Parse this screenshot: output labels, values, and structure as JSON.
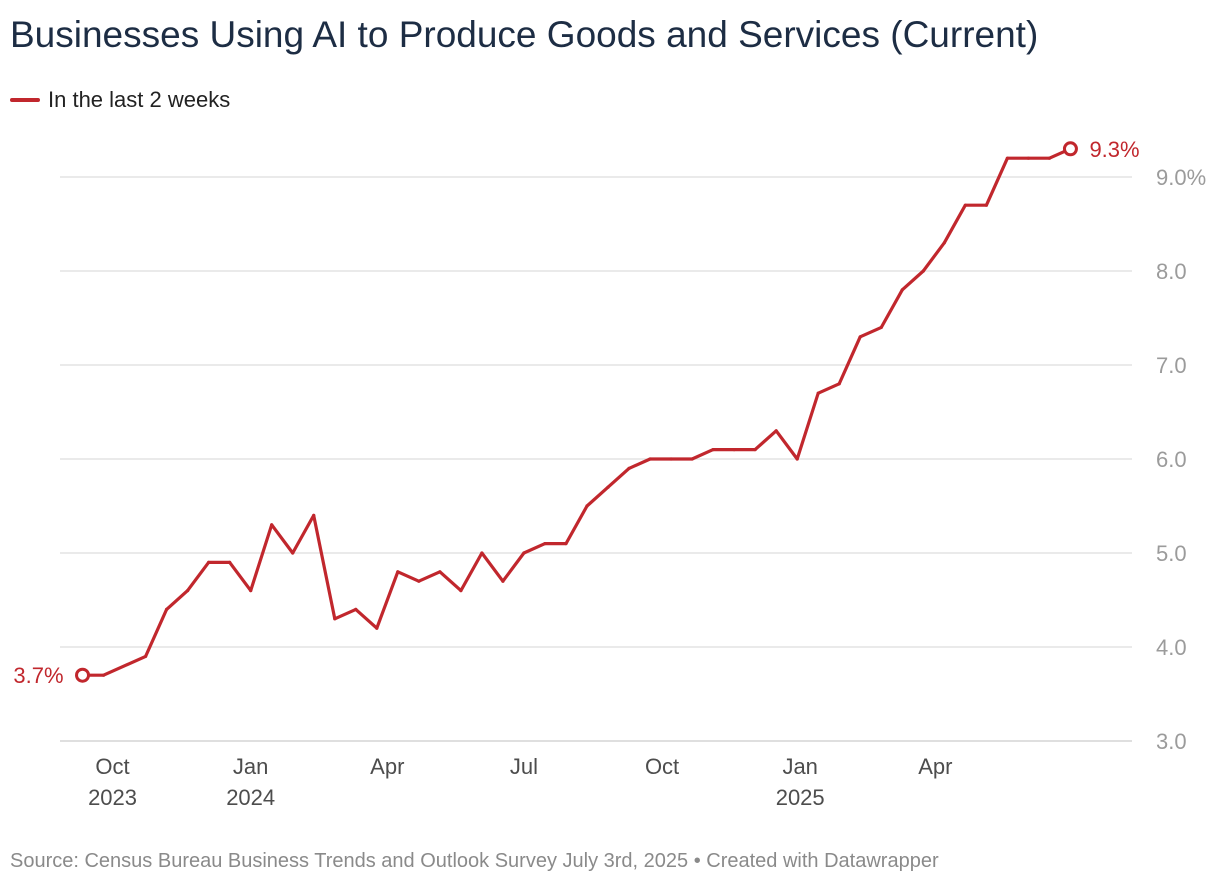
{
  "title": "Businesses Using AI to Produce Goods and Services (Current)",
  "source": "Source: Census Bureau Business Trends and Outlook Survey July 3rd, 2025 • Created with Datawrapper",
  "colors": {
    "series": "#c1272d",
    "grid": "#dddddd",
    "axis_text": "#9b9b9b",
    "tick_text": "#4d4d4d",
    "title": "#1d2d44"
  },
  "chart_data": {
    "type": "line",
    "title": "Businesses Using AI to Produce Goods and Services (Current)",
    "xlabel": "",
    "ylabel": "",
    "ylim": [
      3.0,
      9.5
    ],
    "xlim": [
      "2023-08-27",
      "2025-08-10"
    ],
    "yticks": [
      3.0,
      4.0,
      5.0,
      6.0,
      7.0,
      8.0,
      9.0
    ],
    "ytick_labels": [
      "3.0",
      "4.0",
      "5.0",
      "6.0",
      "7.0",
      "8.0",
      "9.0%"
    ],
    "xticks": [
      {
        "date": "2023-10-01",
        "line1": "Oct",
        "line2": "2023"
      },
      {
        "date": "2024-01-01",
        "line1": "Jan",
        "line2": "2024"
      },
      {
        "date": "2024-04-01",
        "line1": "Apr",
        "line2": ""
      },
      {
        "date": "2024-07-01",
        "line1": "Jul",
        "line2": ""
      },
      {
        "date": "2024-10-01",
        "line1": "Oct",
        "line2": ""
      },
      {
        "date": "2025-01-01",
        "line1": "Jan",
        "line2": "2025"
      },
      {
        "date": "2025-04-01",
        "line1": "Apr",
        "line2": ""
      }
    ],
    "grid": true,
    "legend": "top-left",
    "series": [
      {
        "name": "In the last 2 weeks",
        "color": "#c1272d",
        "x": [
          "2023-09-11",
          "2023-09-25",
          "2023-10-23",
          "2023-11-06",
          "2023-11-20",
          "2023-12-04",
          "2023-12-18",
          "2024-01-01",
          "2024-01-15",
          "2024-01-29",
          "2024-02-12",
          "2024-02-26",
          "2024-03-11",
          "2024-03-25",
          "2024-04-08",
          "2024-04-22",
          "2024-05-06",
          "2024-05-20",
          "2024-06-03",
          "2024-06-17",
          "2024-07-01",
          "2024-07-15",
          "2024-07-29",
          "2024-08-12",
          "2024-08-26",
          "2024-09-09",
          "2024-09-23",
          "2024-10-07",
          "2024-10-21",
          "2024-11-04",
          "2024-11-18",
          "2024-12-02",
          "2024-12-16",
          "2024-12-30",
          "2025-01-13",
          "2025-01-27",
          "2025-02-10",
          "2025-02-24",
          "2025-03-10",
          "2025-03-24",
          "2025-04-07",
          "2025-04-21",
          "2025-05-05",
          "2025-05-19",
          "2025-06-02",
          "2025-06-16",
          "2025-06-30"
        ],
        "values": [
          3.7,
          3.7,
          3.9,
          4.4,
          4.6,
          4.9,
          4.9,
          4.6,
          5.3,
          5.0,
          5.4,
          4.3,
          4.4,
          4.2,
          4.8,
          4.7,
          4.8,
          4.6,
          5.0,
          4.7,
          5.0,
          5.1,
          5.1,
          5.5,
          5.7,
          5.9,
          6.0,
          6.0,
          6.0,
          6.1,
          6.1,
          6.1,
          6.3,
          6.0,
          6.7,
          6.8,
          7.3,
          7.4,
          7.8,
          8.0,
          8.3,
          8.7,
          8.7,
          9.2,
          9.2,
          9.2,
          9.3
        ]
      }
    ],
    "annotations": [
      {
        "label": "3.7%",
        "at": "first"
      },
      {
        "label": "9.3%",
        "at": "last"
      }
    ]
  }
}
